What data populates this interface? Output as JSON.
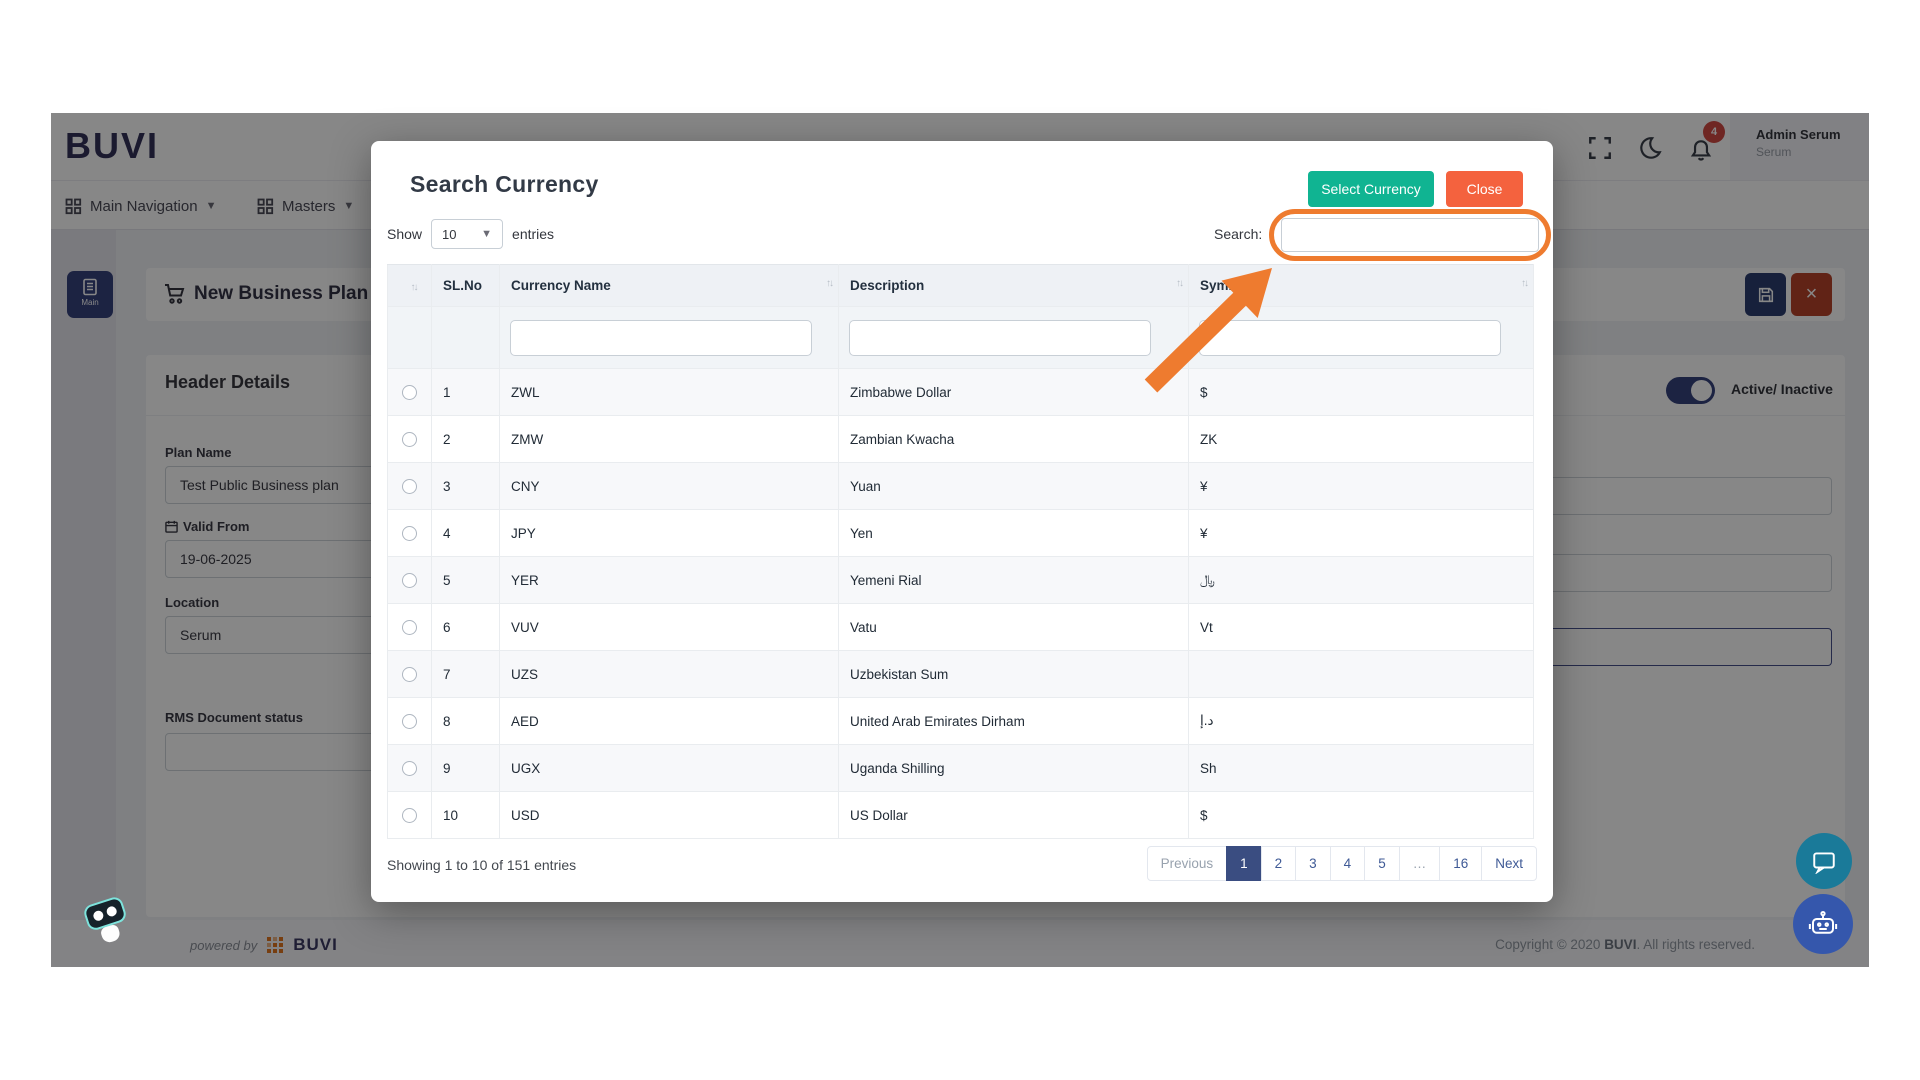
{
  "header": {
    "logo": "BUVI",
    "notification_count": "4",
    "user_name": "Admin Serum",
    "user_role": "Serum"
  },
  "nav": {
    "items": [
      {
        "label": "Main Navigation"
      },
      {
        "label": "Masters"
      }
    ]
  },
  "sidebar": {
    "main_button_label": "Main"
  },
  "background_page": {
    "title": "New Business Plan",
    "header_details_title": "Header Details",
    "active_toggle_label": "Active/ Inactive",
    "plan_name_label": "Plan Name",
    "plan_name_value": "Test Public Business plan",
    "valid_from_label": "Valid From",
    "valid_from_value": "19-06-2025",
    "location_label": "Location",
    "location_value": "Serum",
    "rms_document_status_label": "RMS Document status",
    "status_label_partial": "tus"
  },
  "modal": {
    "title": "Search Currency",
    "select_currency_button": "Select Currency",
    "close_button": "Close",
    "show_label": "Show",
    "page_size": "10",
    "entries_label": "entries",
    "search_label": "Search:",
    "search_value": "",
    "table": {
      "headers": {
        "sl_no": "SL.No",
        "currency_name": "Currency Name",
        "description": "Description",
        "symbol": "Symbol"
      },
      "rows": [
        {
          "sl_no": "1",
          "currency_name": "ZWL",
          "description": "Zimbabwe Dollar",
          "symbol": "$"
        },
        {
          "sl_no": "2",
          "currency_name": "ZMW",
          "description": "Zambian Kwacha",
          "symbol": "ZK"
        },
        {
          "sl_no": "3",
          "currency_name": "CNY",
          "description": "Yuan",
          "symbol": "¥"
        },
        {
          "sl_no": "4",
          "currency_name": "JPY",
          "description": "Yen",
          "symbol": "¥"
        },
        {
          "sl_no": "5",
          "currency_name": "YER",
          "description": "Yemeni Rial",
          "symbol": "﷼"
        },
        {
          "sl_no": "6",
          "currency_name": "VUV",
          "description": "Vatu",
          "symbol": "Vt"
        },
        {
          "sl_no": "7",
          "currency_name": "UZS",
          "description": "Uzbekistan Sum",
          "symbol": ""
        },
        {
          "sl_no": "8",
          "currency_name": "AED",
          "description": "United Arab Emirates Dirham",
          "symbol": "د.إ"
        },
        {
          "sl_no": "9",
          "currency_name": "UGX",
          "description": "Uganda Shilling",
          "symbol": "Sh"
        },
        {
          "sl_no": "10",
          "currency_name": "USD",
          "description": "US Dollar",
          "symbol": "$"
        }
      ]
    },
    "summary": "Showing 1 to 10 of 151 entries",
    "pagination": {
      "previous_label": "Previous",
      "pages": [
        "1",
        "2",
        "3",
        "4",
        "5",
        "…",
        "16"
      ],
      "active_page": "1",
      "next_label": "Next"
    }
  },
  "footer": {
    "powered_by": "powered by",
    "brand": "BUVI",
    "copyright_prefix": "Copyright © 2020 ",
    "copyright_brand": "BUVI",
    "copyright_suffix": ". All rights reserved."
  },
  "colors": {
    "primary_navy": "#35427e",
    "select_button_green": "#10b492",
    "close_button_orange": "#f4623e",
    "annotation_orange": "#ee7b2f",
    "pagination_active_navy": "#3a4d81",
    "notification_badge_red": "#d24a43",
    "chat_fab_teal": "#1a7a99",
    "bot_fab_blue": "#3557ac"
  },
  "icons": {
    "fullscreen": "corner-brackets",
    "dark_mode": "moon",
    "notifications": "bell",
    "nav_menu": "grid",
    "page": "cart",
    "save": "floppy",
    "close": "x",
    "valid_from": "calendar",
    "main": "document",
    "sort": "up-down-arrows",
    "chat_fab": "speech-bubble",
    "bot_fab": "robot"
  }
}
